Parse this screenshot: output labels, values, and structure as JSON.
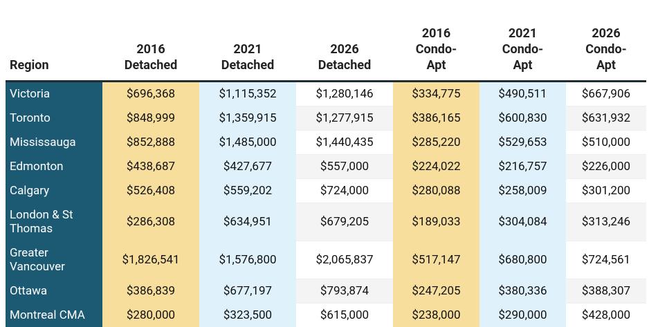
{
  "table": {
    "header": [
      [
        "Region"
      ],
      [
        "2016",
        "Detached"
      ],
      [
        "2021",
        "Detached"
      ],
      [
        "2026",
        "Detached"
      ],
      [
        "2016",
        "Condo-",
        "Apt"
      ],
      [
        "2021",
        "Condo-",
        "Apt"
      ],
      [
        "2026",
        "Condo-",
        "Apt"
      ]
    ],
    "rows": [
      [
        "Victoria",
        "$696,368",
        "$1,115,352",
        "$1,280,146",
        "$334,775",
        "$490,511",
        "$667,906"
      ],
      [
        "Toronto",
        "$848,999",
        "$1,359,915",
        "$1,277,915",
        "$386,165",
        "$600,830",
        "$631,932"
      ],
      [
        "Mississauga",
        "$852,888",
        "$1,485,000",
        "$1,440,435",
        "$285,220",
        "$529,653",
        "$510,000"
      ],
      [
        "Edmonton",
        "$438,687",
        "$427,677",
        "$557,000",
        "$224,022",
        "$216,757",
        "$226,000"
      ],
      [
        "Calgary",
        "$526,408",
        "$559,202",
        "$724,000",
        "$280,088",
        "$258,009",
        "$301,200"
      ],
      [
        "London & St Thomas",
        "$286,308",
        "$634,951",
        "$679,205",
        "$189,033",
        "$304,084",
        "$313,246"
      ],
      [
        "Greater Vancouver",
        "$1,826,541",
        "$1,576,800",
        "$2,065,837",
        "$517,147",
        "$680,800",
        "$724,561"
      ],
      [
        "Ottawa",
        "$386,839",
        "$677,197",
        "$793,874",
        "$247,205",
        "$380,336",
        "$388,307"
      ],
      [
        "Montreal CMA",
        "$280,000",
        "$323,500",
        "$615,000",
        "$238,000",
        "$290,000",
        "$428,000"
      ]
    ]
  }
}
